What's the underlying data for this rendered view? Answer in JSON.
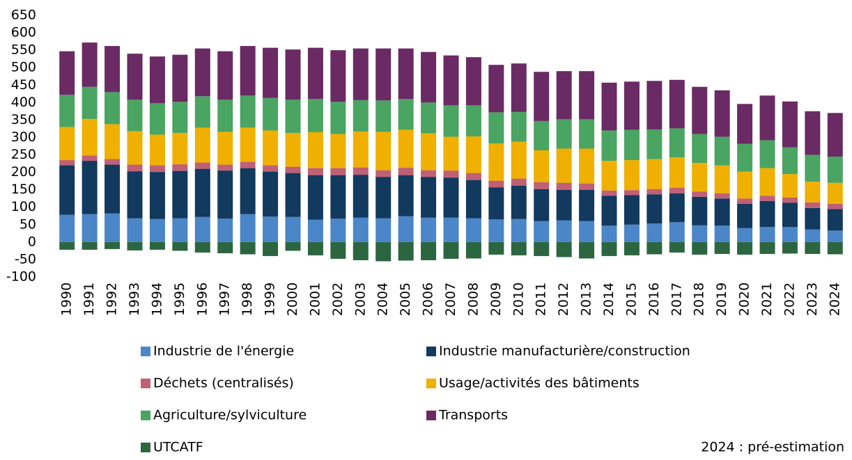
{
  "chart_data": {
    "type": "stacked_bar",
    "categories": [
      "1990",
      "1991",
      "1992",
      "1993",
      "1994",
      "1995",
      "1996",
      "1997",
      "1998",
      "1999",
      "2000",
      "2001",
      "2002",
      "2003",
      "2004",
      "2005",
      "2006",
      "2007",
      "2008",
      "2009",
      "2010",
      "2011",
      "2012",
      "2013",
      "2014",
      "2015",
      "2016",
      "2017",
      "2018",
      "2019",
      "2020",
      "2021",
      "2022",
      "2023",
      "2024"
    ],
    "series": [
      {
        "name": "Industrie de l'énergie",
        "color": "#4a86c8",
        "values": [
          78,
          80,
          82,
          68,
          66,
          68,
          72,
          67,
          80,
          73,
          72,
          64,
          67,
          70,
          68,
          74,
          70,
          70,
          68,
          65,
          66,
          60,
          62,
          60,
          47,
          50,
          53,
          57,
          48,
          47,
          40,
          43,
          43,
          36,
          33
        ]
      },
      {
        "name": "Industrie manufacturière/construction",
        "color": "#12395e",
        "values": [
          142,
          153,
          140,
          135,
          135,
          136,
          138,
          138,
          132,
          129,
          126,
          128,
          125,
          123,
          119,
          118,
          117,
          115,
          110,
          92,
          96,
          92,
          88,
          90,
          86,
          85,
          84,
          83,
          82,
          78,
          70,
          75,
          70,
          62,
          62
        ]
      },
      {
        "name": "Déchets (centralisés)",
        "color": "#c06075",
        "values": [
          15,
          15,
          16,
          19,
          19,
          19,
          18,
          17,
          18,
          18,
          18,
          20,
          20,
          21,
          19,
          21,
          19,
          20,
          20,
          19,
          20,
          20,
          20,
          18,
          15,
          14,
          15,
          16,
          15,
          15,
          15,
          15,
          15,
          16,
          15
        ]
      },
      {
        "name": "Usage/activités des bâtiments",
        "color": "#efb000",
        "values": [
          95,
          105,
          100,
          96,
          88,
          90,
          100,
          94,
          98,
          100,
          97,
          103,
          98,
          103,
          110,
          109,
          106,
          97,
          105,
          107,
          106,
          91,
          98,
          100,
          85,
          86,
          86,
          87,
          82,
          80,
          77,
          79,
          67,
          59,
          60
        ]
      },
      {
        "name": "Agriculture/sylviculture",
        "color": "#4aa462",
        "values": [
          92,
          92,
          92,
          90,
          90,
          89,
          90,
          92,
          92,
          93,
          95,
          95,
          92,
          90,
          90,
          88,
          88,
          90,
          89,
          89,
          85,
          84,
          84,
          84,
          87,
          87,
          85,
          83,
          83,
          82,
          80,
          80,
          77,
          77,
          75
        ]
      },
      {
        "name": "Transports",
        "color": "#6a2a64",
        "values": [
          125,
          127,
          132,
          132,
          134,
          135,
          137,
          139,
          142,
          144,
          144,
          147,
          148,
          148,
          149,
          145,
          145,
          143,
          138,
          136,
          139,
          141,
          138,
          138,
          137,
          138,
          139,
          139,
          135,
          133,
          114,
          128,
          131,
          125,
          125
        ]
      },
      {
        "name": "UTCATF",
        "color": "#2c6640",
        "values": [
          -22,
          -22,
          -20,
          -24,
          -22,
          -25,
          -30,
          -32,
          -35,
          -40,
          -25,
          -38,
          -48,
          -52,
          -55,
          -53,
          -52,
          -48,
          -47,
          -36,
          -38,
          -40,
          -43,
          -47,
          -40,
          -38,
          -35,
          -30,
          -36,
          -34,
          -36,
          -34,
          -33,
          -34,
          -35
        ]
      }
    ],
    "ylim": [
      -100,
      650
    ],
    "yticks": [
      -100,
      -50,
      0,
      50,
      100,
      150,
      200,
      250,
      300,
      350,
      400,
      450,
      500,
      550,
      600,
      650
    ],
    "grid": false,
    "annotation": "2024 : pré-estimation"
  }
}
